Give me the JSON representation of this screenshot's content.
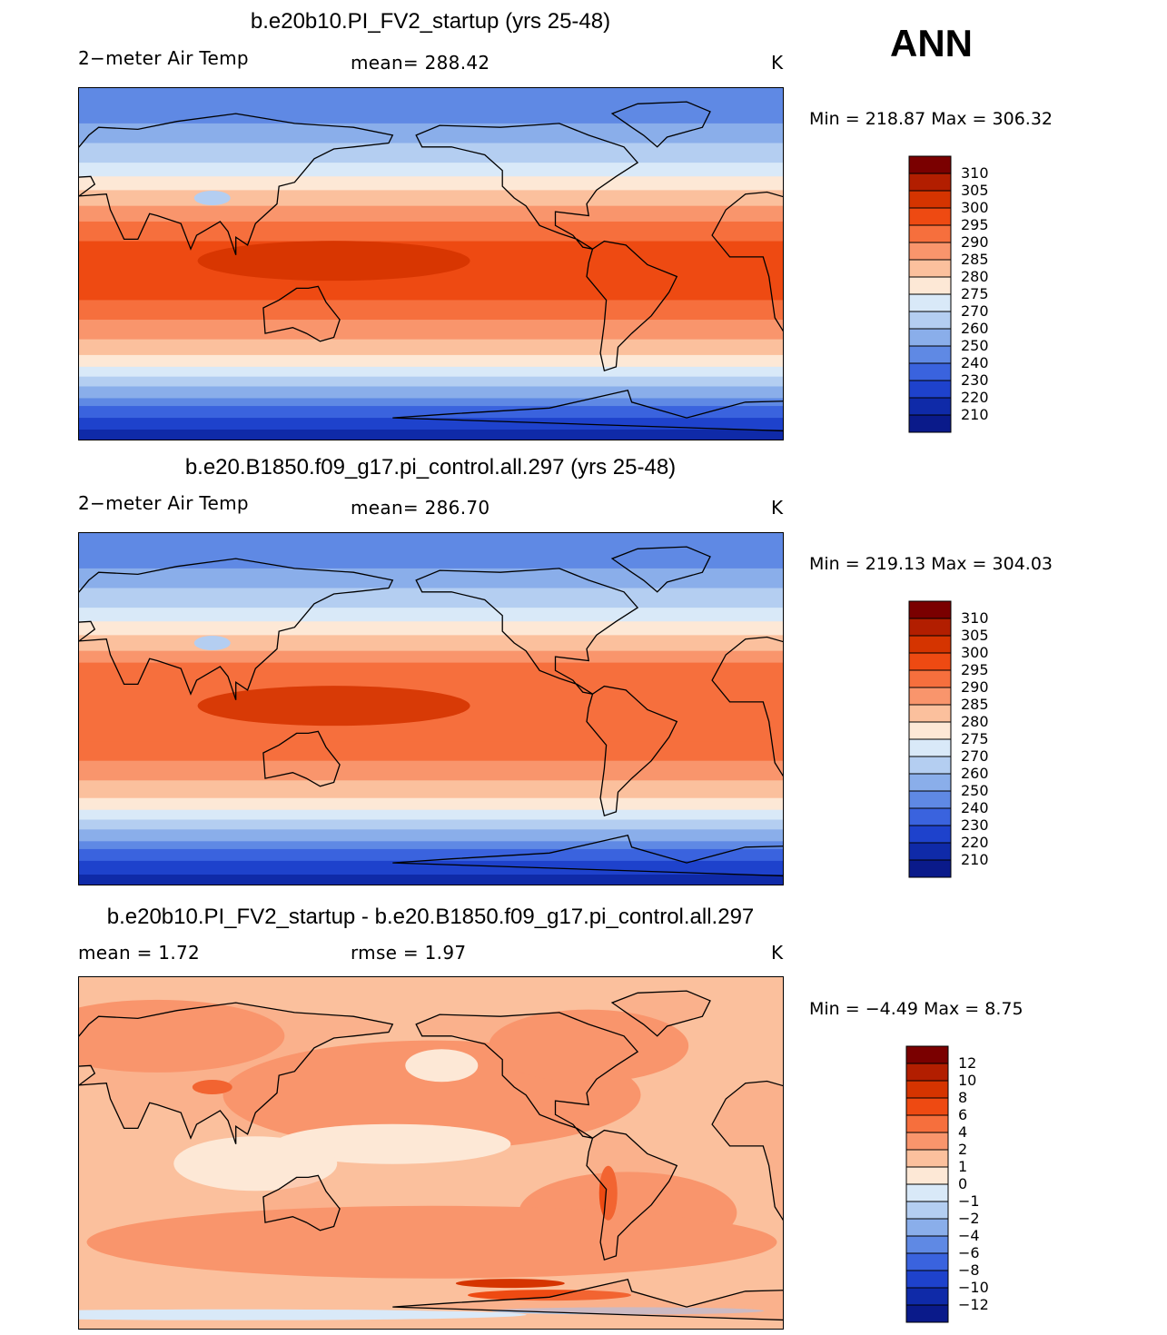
{
  "season_label": "ANN",
  "panels": [
    {
      "title": "b.e20b10.PI_FV2_startup (yrs 25-48)",
      "left_label": "2−meter Air Temp",
      "center_label": "mean=  288.42",
      "right_label": "K",
      "minmax": "Min  =  218.87  Max  =  306.32",
      "colorbar_labels": [
        "310",
        "305",
        "300",
        "295",
        "290",
        "285",
        "280",
        "275",
        "270",
        "260",
        "250",
        "240",
        "230",
        "220",
        "210"
      ],
      "field_type": "abs",
      "colors": [
        "#7a0000",
        "#b21e00",
        "#d53400",
        "#ee4a12",
        "#f66f3d",
        "#f9956c",
        "#fbc09d",
        "#fde8d6",
        "#d9e9f8",
        "#b4cef1",
        "#8aaeea",
        "#5f89e4",
        "#3a63de",
        "#1e42cc",
        "#0f2aa8",
        "#0a1a8a"
      ]
    },
    {
      "title": "b.e20.B1850.f09_g17.pi_control.all.297 (yrs 25-48)",
      "left_label": "2−meter Air Temp",
      "center_label": "mean=  286.70",
      "right_label": "K",
      "minmax": "Min  =  219.13  Max  =  304.03",
      "colorbar_labels": [
        "310",
        "305",
        "300",
        "295",
        "290",
        "285",
        "280",
        "275",
        "270",
        "260",
        "250",
        "240",
        "230",
        "220",
        "210"
      ],
      "field_type": "abs2",
      "colors": [
        "#7a0000",
        "#b21e00",
        "#d53400",
        "#ee4a12",
        "#f66f3d",
        "#f9956c",
        "#fbc09d",
        "#fde8d6",
        "#d9e9f8",
        "#b4cef1",
        "#8aaeea",
        "#5f89e4",
        "#3a63de",
        "#1e42cc",
        "#0f2aa8",
        "#0a1a8a"
      ]
    },
    {
      "title": "b.e20b10.PI_FV2_startup - b.e20.B1850.f09_g17.pi_control.all.297",
      "left_label": "mean =      1.72",
      "center_label": "rmse =      1.97",
      "right_label": "K",
      "minmax": "Min  =    −4.49  Max  =      8.75",
      "colorbar_labels": [
        "12",
        "10",
        "8",
        "6",
        "4",
        "2",
        "1",
        "0",
        "−1",
        "−2",
        "−4",
        "−6",
        "−8",
        "−10",
        "−12"
      ],
      "field_type": "diff",
      "colors": [
        "#7a0000",
        "#b21e00",
        "#d53400",
        "#ee4a12",
        "#f66f3d",
        "#f9956c",
        "#fbc09d",
        "#fde8d6",
        "#d9e9f8",
        "#b4cef1",
        "#8aaeea",
        "#5f89e4",
        "#3a63de",
        "#1e42cc",
        "#0f2aa8",
        "#0a1a8a"
      ]
    }
  ]
}
